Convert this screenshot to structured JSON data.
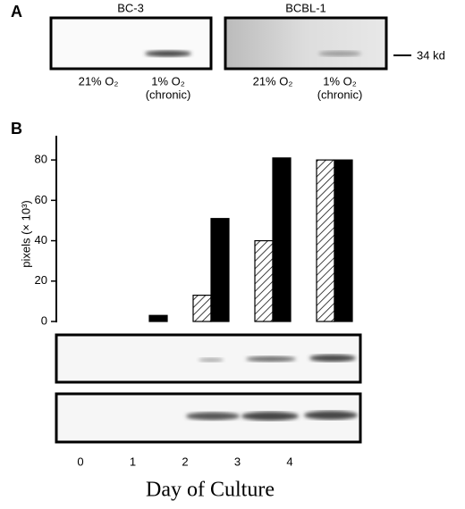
{
  "panel_a": {
    "label": "A",
    "blots": [
      {
        "title": "BC-3",
        "lanes": [
          "21% O₂",
          "1% O₂",
          "(chronic)"
        ]
      },
      {
        "title": "BCBL-1",
        "lanes": [
          "21% O₂",
          "1% O₂",
          "(chronic)"
        ]
      }
    ],
    "marker": "34 kd"
  },
  "chart_data": {
    "type": "bar",
    "panel_label": "B",
    "y_label": "pixels (× 10³)",
    "x_label": "Day of Culture",
    "categories": [
      "0",
      "1",
      "2",
      "3",
      "4"
    ],
    "series": [
      {
        "color": "#000000",
        "pattern": "hatch",
        "values": [
          0,
          0,
          13,
          40,
          80
        ]
      },
      {
        "color": "#000000",
        "pattern": "solid",
        "values": [
          0,
          3,
          51,
          81,
          80
        ]
      }
    ],
    "ylim": [
      0,
      92
    ],
    "yticks": [
      0,
      20,
      40,
      60,
      80
    ],
    "grid": false
  }
}
